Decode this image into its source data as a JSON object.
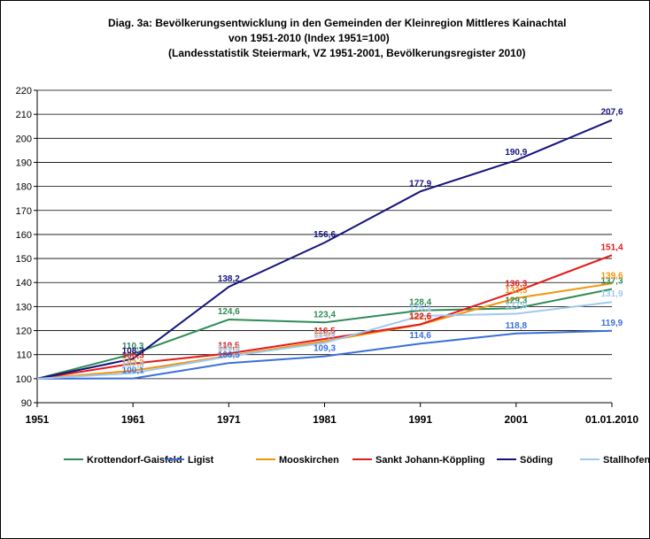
{
  "chart_data": {
    "type": "line",
    "title_lines": [
      "Diag. 3a: Bevölkerungsentwicklung in den Gemeinden der Kleinregion Mittleres Kainachtal",
      "von 1951-2010 (Index 1951=100)",
      "(Landesstatistik Steiermark, VZ 1951-2001, Bevölkerungsregister 2010)"
    ],
    "categories": [
      "1951",
      "1961",
      "1971",
      "1981",
      "1991",
      "2001",
      "01.01.2010"
    ],
    "ylim": [
      90,
      220
    ],
    "yticks": [
      90,
      100,
      110,
      120,
      130,
      140,
      150,
      160,
      170,
      180,
      190,
      200,
      210,
      220
    ],
    "grid": true,
    "legend_position": "bottom",
    "series": [
      {
        "name": "Krottendorf-Gaisfeld",
        "color": "#2e8b57",
        "values": [
          100,
          110.3,
          124.6,
          123.4,
          128.4,
          129.3,
          137.3
        ],
        "labels": [
          "",
          "110,3",
          "124,6",
          "123,4",
          "128,4",
          "129,3",
          "137,3"
        ]
      },
      {
        "name": "Ligist",
        "color": "#3a6fd8",
        "values": [
          100,
          100.1,
          106.5,
          109.3,
          114.6,
          118.8,
          119.9
        ],
        "labels": [
          "",
          "100,1",
          "106,5",
          "109,3",
          "114,6",
          "118,8",
          "119,9"
        ]
      },
      {
        "name": "Mooskirchen",
        "color": "#f0960a",
        "values": [
          100,
          103.3,
          109.5,
          115.6,
          122.5,
          133.5,
          139.6
        ],
        "labels": [
          "",
          "103,3",
          "109,5",
          "115,6",
          "122,5",
          "133,5",
          "139,6"
        ]
      },
      {
        "name": "Sankt Johann-Köppling",
        "color": "#e31a1c",
        "values": [
          100,
          106.3,
          110.5,
          116.5,
          122.6,
          136.3,
          151.4
        ],
        "labels": [
          "",
          "106,3",
          "110,5",
          "116,5",
          "122,6",
          "136,3",
          "151,4"
        ]
      },
      {
        "name": "Söding",
        "color": "#14147a",
        "values": [
          100,
          108.3,
          138.2,
          156.6,
          177.9,
          190.9,
          207.6
        ],
        "labels": [
          "",
          "108,3",
          "138,2",
          "156,6",
          "177,9",
          "190,9",
          "207,6"
        ]
      },
      {
        "name": "Stallhofen",
        "color": "#9fc9f0",
        "values": [
          100,
          102.3,
          109.3,
          114.9,
          126.1,
          127.0,
          131.9
        ],
        "labels": [
          "",
          "102,3",
          "109,3",
          "114,9",
          "126,1",
          "127,0",
          "131,9"
        ]
      }
    ]
  }
}
